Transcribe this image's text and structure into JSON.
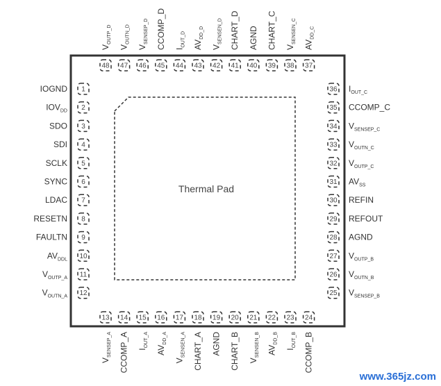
{
  "thermal_pad_label": "Thermal Pad",
  "watermark": "www.365jz.com",
  "pins": {
    "left": [
      {
        "num": "1",
        "name": "IOGND",
        "sub": ""
      },
      {
        "num": "2",
        "name": "IOV",
        "sub": "DD"
      },
      {
        "num": "3",
        "name": "SDO",
        "sub": ""
      },
      {
        "num": "4",
        "name": "SDI",
        "sub": ""
      },
      {
        "num": "5",
        "name": "SCLK",
        "sub": ""
      },
      {
        "num": "6",
        "name": "SYNC",
        "sub": ""
      },
      {
        "num": "7",
        "name": "LDAC",
        "sub": ""
      },
      {
        "num": "8",
        "name": "RESETN",
        "sub": ""
      },
      {
        "num": "9",
        "name": "FAULTN",
        "sub": ""
      },
      {
        "num": "10",
        "name": "AV",
        "sub": "DDL"
      },
      {
        "num": "11",
        "name": "V",
        "sub": "OUTP_A"
      },
      {
        "num": "12",
        "name": "V",
        "sub": "OUTN_A"
      }
    ],
    "bottom": [
      {
        "num": "13",
        "name": "V",
        "sub": "SENSEP_A"
      },
      {
        "num": "14",
        "name": "CCOMP_A",
        "sub": ""
      },
      {
        "num": "15",
        "name": "I",
        "sub": "OUT_A"
      },
      {
        "num": "16",
        "name": "AV",
        "sub": "DD_A"
      },
      {
        "num": "17",
        "name": "V",
        "sub": "SENSEN_A"
      },
      {
        "num": "18",
        "name": "CHART_A",
        "sub": ""
      },
      {
        "num": "19",
        "name": "AGND",
        "sub": ""
      },
      {
        "num": "20",
        "name": "CHART_B",
        "sub": ""
      },
      {
        "num": "21",
        "name": "V",
        "sub": "SENSEN_B"
      },
      {
        "num": "22",
        "name": "AV",
        "sub": "DD_B"
      },
      {
        "num": "23",
        "name": "I",
        "sub": "OUT_B"
      },
      {
        "num": "24",
        "name": "CCOMP_B",
        "sub": ""
      }
    ],
    "right": [
      {
        "num": "36",
        "name": "I",
        "sub": "OUT_C"
      },
      {
        "num": "35",
        "name": "CCOMP_C",
        "sub": ""
      },
      {
        "num": "34",
        "name": "V",
        "sub": "SENSEP_C"
      },
      {
        "num": "33",
        "name": "V",
        "sub": "OUTN_C"
      },
      {
        "num": "32",
        "name": "V",
        "sub": "OUTP_C"
      },
      {
        "num": "31",
        "name": "AV",
        "sub": "SS"
      },
      {
        "num": "30",
        "name": "REFIN",
        "sub": ""
      },
      {
        "num": "29",
        "name": "REFOUT",
        "sub": ""
      },
      {
        "num": "28",
        "name": "AGND",
        "sub": ""
      },
      {
        "num": "27",
        "name": "V",
        "sub": "OUTP_B"
      },
      {
        "num": "26",
        "name": "V",
        "sub": "OUTN_B"
      },
      {
        "num": "25",
        "name": "V",
        "sub": "SENSEP_B"
      }
    ],
    "top": [
      {
        "num": "48",
        "name": "V",
        "sub": "OUTP_D"
      },
      {
        "num": "47",
        "name": "V",
        "sub": "OUTN_D"
      },
      {
        "num": "46",
        "name": "V",
        "sub": "SENSEP_D"
      },
      {
        "num": "45",
        "name": "CCOMP_D",
        "sub": ""
      },
      {
        "num": "44",
        "name": "I",
        "sub": "OUT_D"
      },
      {
        "num": "43",
        "name": "AV",
        "sub": "DD_D"
      },
      {
        "num": "42",
        "name": "V",
        "sub": "SENSEN_D"
      },
      {
        "num": "41",
        "name": "CHART_D",
        "sub": ""
      },
      {
        "num": "40",
        "name": "AGND",
        "sub": ""
      },
      {
        "num": "39",
        "name": "CHART_C",
        "sub": ""
      },
      {
        "num": "38",
        "name": "V",
        "sub": "SENSEN_C"
      },
      {
        "num": "37",
        "name": "AV",
        "sub": "DD_C"
      }
    ]
  }
}
